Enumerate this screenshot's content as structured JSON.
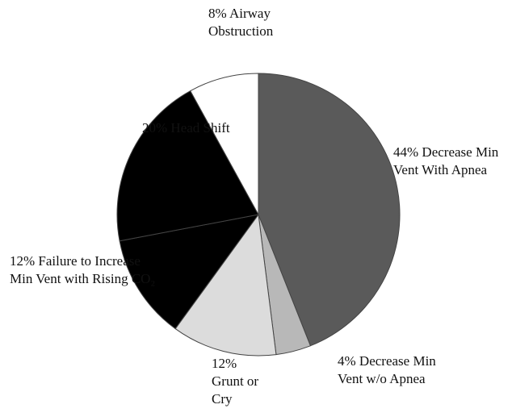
{
  "chart_data": {
    "type": "pie",
    "categories": [
      "Decrease Min Vent With Apnea",
      "Decrease Min Vent w/o Apnea",
      "Grunt or Cry",
      "Failure to Increase Min Vent with Rising CO₂",
      "Head Shift",
      "Airway Obstruction"
    ],
    "values": [
      44,
      4,
      12,
      12,
      20,
      8
    ],
    "value_labels": [
      "44%",
      "4%",
      "12%",
      "12%",
      "20%",
      "8%"
    ],
    "colors": [
      "#5a5a5a",
      "#b8b8b8",
      "#dcdcdc",
      "#000000",
      "#000000",
      "#ffffff"
    ]
  }
}
